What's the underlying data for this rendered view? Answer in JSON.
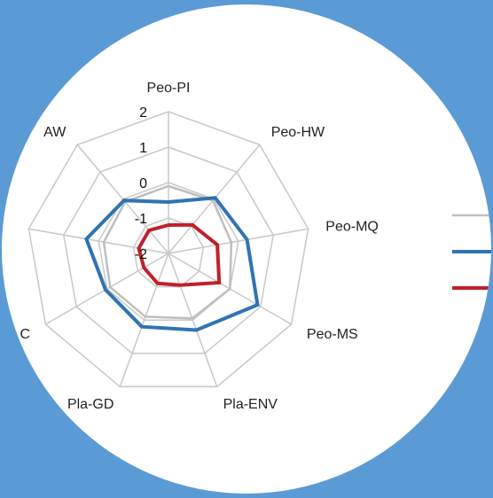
{
  "colors": {
    "background": "#5b9bd5",
    "disc": "#ffffff",
    "grid": "#c8c8c8"
  },
  "chart_data": {
    "type": "radar",
    "title": "",
    "axes": [
      "Peo-PI",
      "Peo-HW",
      "Peo-MQ",
      "Peo-MS",
      "Pla-ENV",
      "Pla-GD",
      "C",
      "",
      "AW"
    ],
    "rlim": [
      -2,
      2
    ],
    "ticks": [
      "-2",
      "-1",
      "0",
      "1",
      "2"
    ],
    "grid": true,
    "legend_position": "right",
    "series": [
      {
        "name": "",
        "color": "#bfbfbf",
        "values": [
          -0.1,
          -0.05,
          -0.2,
          0.0,
          -0.05,
          -0.1,
          -0.1,
          -0.15,
          -0.1
        ]
      },
      {
        "name": "",
        "color": "#2e74b5",
        "values": [
          -0.55,
          0.05,
          0.25,
          0.9,
          0.3,
          0.2,
          0.05,
          0.35,
          -0.05
        ]
      },
      {
        "name": "",
        "color": "#c0202a",
        "values": [
          -1.2,
          -0.95,
          -0.6,
          -0.35,
          -1.05,
          -1.1,
          -1.2,
          -1.15,
          -1.15
        ]
      }
    ]
  }
}
